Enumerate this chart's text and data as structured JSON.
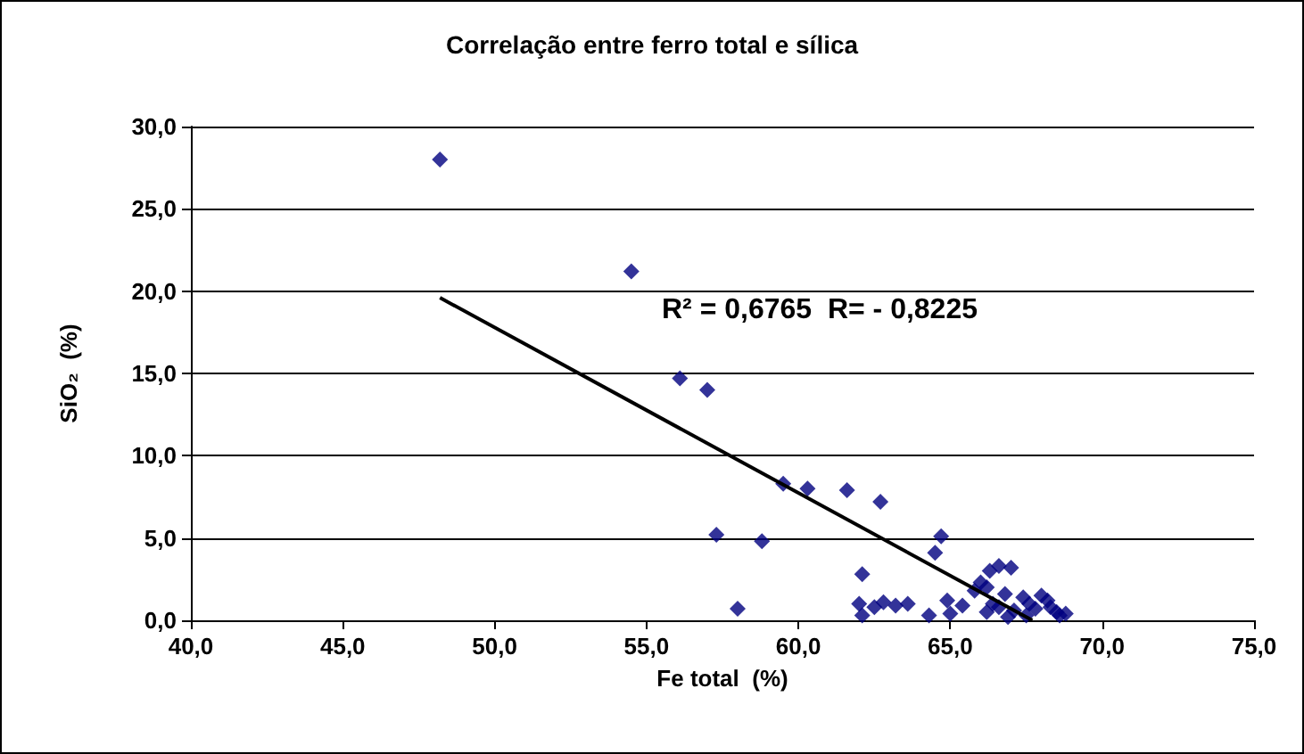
{
  "chart_data": {
    "type": "scatter",
    "title": "Correlação entre ferro total e sílica",
    "xlabel": "Fe total  (%)",
    "ylabel": "SiO₂  (%)",
    "annotations": [
      "R² = 0,6765  R= - 0,8225"
    ],
    "xlim": [
      40,
      75
    ],
    "xticks": [
      {
        "value": 40,
        "label": "40,0"
      },
      {
        "value": 45,
        "label": "45,0"
      },
      {
        "value": 50,
        "label": "50,0"
      },
      {
        "value": 55,
        "label": "55,0"
      },
      {
        "value": 60,
        "label": "60,0"
      },
      {
        "value": 65,
        "label": "65,0"
      },
      {
        "value": 70,
        "label": "70,0"
      },
      {
        "value": 75,
        "label": "75,0"
      }
    ],
    "ylim": [
      0,
      30
    ],
    "yticks": [
      {
        "value": 0,
        "label": "0,0"
      },
      {
        "value": 5,
        "label": "5,0"
      },
      {
        "value": 10,
        "label": "10,0"
      },
      {
        "value": 15,
        "label": "15,0"
      },
      {
        "value": 20,
        "label": "20,0"
      },
      {
        "value": 25,
        "label": "25,0"
      },
      {
        "value": 30,
        "label": "30,0"
      }
    ],
    "grid": "y",
    "marker": "diamond",
    "series": [
      {
        "color": "#000080",
        "x": [
          48.2,
          54.5,
          56.1,
          57.0,
          57.3,
          58.0,
          58.8,
          59.5,
          60.3,
          61.6,
          62.1,
          62.0,
          62.1,
          62.7,
          62.5,
          62.8,
          63.2,
          63.6,
          64.3,
          64.7,
          64.5,
          64.9,
          65.0,
          65.4,
          65.8,
          66.0,
          66.2,
          66.3,
          66.6,
          67.0,
          66.2,
          66.4,
          66.6,
          66.8,
          67.1,
          67.4,
          67.6,
          67.8,
          68.0,
          68.2,
          68.3,
          68.5,
          68.6,
          68.8,
          67.5,
          66.9
        ],
        "values": [
          28.0,
          21.2,
          14.7,
          14.0,
          5.2,
          0.7,
          4.8,
          8.3,
          8.0,
          7.9,
          2.8,
          1.0,
          0.3,
          7.2,
          0.8,
          1.1,
          0.9,
          1.0,
          0.3,
          5.1,
          4.1,
          1.2,
          0.4,
          0.9,
          1.8,
          2.3,
          2.0,
          3.0,
          3.3,
          3.2,
          0.5,
          1.0,
          0.8,
          1.6,
          0.6,
          1.4,
          1.0,
          0.7,
          1.5,
          1.2,
          0.8,
          0.5,
          0.3,
          0.4,
          0.3,
          0.2
        ]
      },
      {
        "type": "line",
        "color": "#000000",
        "marker": "none",
        "x": [
          48.2,
          67.7
        ],
        "values": [
          19.6,
          0
        ]
      }
    ]
  }
}
